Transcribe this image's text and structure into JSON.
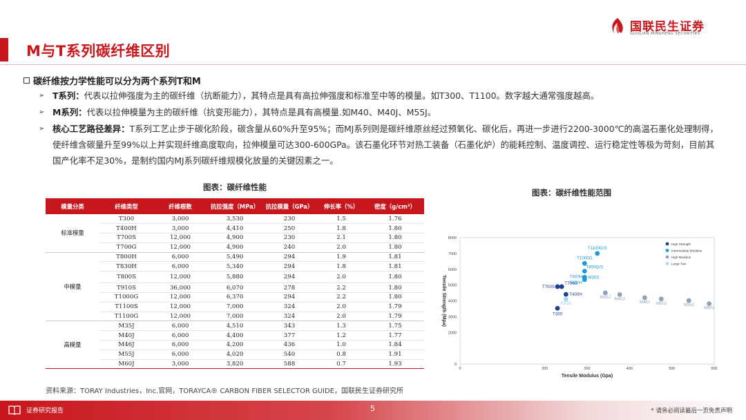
{
  "header": {
    "title": "M与T系列碳纤维区别",
    "logo_cn": "国联民生证券",
    "logo_en": "GUOLIAN MINSHENG SECURITIES"
  },
  "section": {
    "heading": "碳纤维按力学性能可以分为两个系列T和M",
    "bullets": [
      {
        "label": "T系列：",
        "text": "代表以拉伸强度为主的碳纤维（抗断能力），其特点是具有高拉伸强度和标准至中等的模量。如T300、T1100。数字越大通常强度越高。"
      },
      {
        "label": "M系列：",
        "text": "代表以拉伸模量为主的碳纤维（抗变形能力），其特点是具有高模量.如M40、M40J、M55J。"
      },
      {
        "label": "核心工艺路径差异：",
        "text": "T系列工艺止步于碳化阶段，碳含量从60%升至95%；而MJ系列则是碳纤维原丝经过预氧化、碳化后，再进一步进行2200-3000℃的高温石墨化处理制得，使纤维含碳量升至99%以上并实现纤维高度取向，拉伸模量可达300-600GPa。该石墨化环节对热工装备（石墨化炉）的能耗控制、温度调控、运行稳定性等极为苛刻，目前其国产化率不足30%，是制约国内MJ系列碳纤维规模化放量的关键因素之一。"
      }
    ]
  },
  "table": {
    "caption": "图表：碳纤维性能",
    "headers": [
      "模量分类",
      "纤维类型",
      "纤维根数",
      "抗拉强度（MPa）",
      "抗拉模量（GPa）",
      "伸长率（%）",
      "密度（g/cm³）"
    ],
    "groups": [
      {
        "category": "标准模量",
        "rows": [
          [
            "T300",
            "3,000",
            "3,530",
            "230",
            "1.5",
            "1.76"
          ],
          [
            "T400H",
            "3,000",
            "4,410",
            "250",
            "1.8",
            "1.80"
          ],
          [
            "T700S",
            "12,000",
            "4,900",
            "230",
            "2.1",
            "1.80"
          ],
          [
            "T700G",
            "12,000",
            "4,900",
            "240",
            "2.0",
            "1.80"
          ]
        ]
      },
      {
        "category": "中模量",
        "rows": [
          [
            "T800H",
            "6,000",
            "5,490",
            "294",
            "1.9",
            "1.81"
          ],
          [
            "T830H",
            "6,000",
            "5,340",
            "294",
            "1.8",
            "1.81"
          ],
          [
            "T800S",
            "12,000",
            "5,880",
            "294",
            "2.0",
            "1.80"
          ],
          [
            "T910S",
            "36,000",
            "6,070",
            "278",
            "2.2",
            "1.80"
          ],
          [
            "T1000G",
            "12,000",
            "6,370",
            "294",
            "2.2",
            "1.80"
          ],
          [
            "T1100S",
            "12,000",
            "7,000",
            "324",
            "2.0",
            "1.79"
          ],
          [
            "T1100G",
            "12,000",
            "7,000",
            "324",
            "2.0",
            "1.79"
          ]
        ]
      },
      {
        "category": "高模量",
        "rows": [
          [
            "M35J",
            "6,000",
            "4,510",
            "343",
            "1.3",
            "1.75"
          ],
          [
            "M40J",
            "6,000",
            "4,400",
            "377",
            "1.2",
            "1.77"
          ],
          [
            "M46J",
            "6,000",
            "4,200",
            "436",
            "1.0",
            "1.84"
          ],
          [
            "M55J",
            "6,000",
            "4,020",
            "540",
            "0.8",
            "1.91"
          ],
          [
            "M60J",
            "3,000",
            "3,820",
            "588",
            "0.7",
            "1.93"
          ]
        ]
      }
    ],
    "source": "资料来源：TORAY Industries，Inc.官网，TORAYCA® CARBON FIBER SELECTOR GUIDE，国联民生证券研究所"
  },
  "chart_caption": "图表：碳纤维性能范围",
  "chart_data": {
    "type": "scatter",
    "xlabel": "Tensile Modulus (Gpa)",
    "ylabel": "Tensile Strength (Mpa)",
    "xlim": [
      0,
      600
    ],
    "ylim": [
      0,
      8000
    ],
    "xticks": [
      "0",
      "200",
      "300",
      "400",
      "500",
      "600"
    ],
    "xtick_values": [
      0,
      200,
      300,
      400,
      500,
      600
    ],
    "yticks": [
      "0",
      "2000",
      "3000",
      "4000",
      "5000",
      "6000",
      "7000",
      "8000"
    ],
    "ytick_values": [
      0,
      2000,
      3000,
      4000,
      5000,
      6000,
      7000,
      8000
    ],
    "legend": [
      "High Strength",
      "Intermediate Modulus",
      "High Modulus",
      "Large Tow"
    ],
    "legend_position": "top-right",
    "series": [
      {
        "name": "High Strength",
        "color": "#1f3f8f",
        "points": [
          {
            "label": "T300",
            "x": 230,
            "y": 3530
          },
          {
            "label": "T700S",
            "x": 230,
            "y": 4900
          },
          {
            "label": "T700G",
            "x": 240,
            "y": 4900
          },
          {
            "label": "T400H",
            "x": 250,
            "y": 4410
          }
        ]
      },
      {
        "name": "Intermediate Modulus",
        "color": "#1b9ad6",
        "points": [
          {
            "label": "T1100G/S",
            "x": 324,
            "y": 7000
          },
          {
            "label": "T1000G",
            "x": 294,
            "y": 6370
          },
          {
            "label": "T800G/S",
            "x": 294,
            "y": 5880
          },
          {
            "label": "T800H",
            "x": 294,
            "y": 5490
          },
          {
            "label": "T830H",
            "x": 294,
            "y": 5340
          },
          {
            "label": "M30S",
            "x": 294,
            "y": 5490
          }
        ]
      },
      {
        "name": "High Modulus",
        "color": "#8fa3b8",
        "points": [
          {
            "label": "M35J",
            "x": 343,
            "y": 4510
          },
          {
            "label": "M40J",
            "x": 377,
            "y": 4400
          },
          {
            "label": "M46J",
            "x": 436,
            "y": 4200
          },
          {
            "label": "M50J",
            "x": 475,
            "y": 4120
          },
          {
            "label": "M55J",
            "x": 540,
            "y": 4020
          },
          {
            "label": "M60J",
            "x": 588,
            "y": 3820
          }
        ]
      },
      {
        "name": "Large Tow",
        "color": "#a9d8ef",
        "points": [
          {
            "label": "PX35",
            "x": 250,
            "y": 4100
          }
        ]
      }
    ]
  },
  "footer": {
    "label": "证券研究报告",
    "page": "5",
    "disclaimer": "* 请务必阅读最后一页免责声明"
  }
}
